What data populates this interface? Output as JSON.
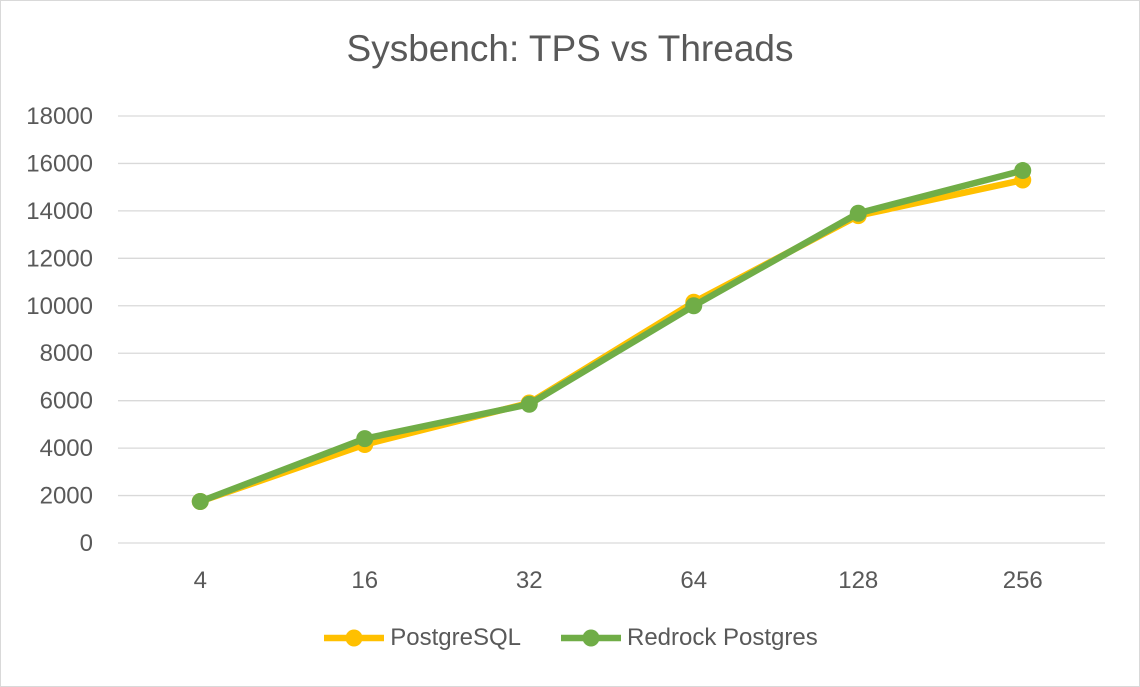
{
  "chart_data": {
    "type": "line",
    "title": "Sysbench: TPS vs Threads",
    "xlabel": "",
    "ylabel": "",
    "categories": [
      "4",
      "16",
      "32",
      "64",
      "128",
      "256"
    ],
    "ylim": [
      0,
      18000
    ],
    "yticks": [
      "0",
      "2000",
      "4000",
      "6000",
      "8000",
      "10000",
      "12000",
      "14000",
      "16000",
      "18000"
    ],
    "grid": true,
    "legend_position": "bottom",
    "series": [
      {
        "name": "PostgreSQL",
        "color": "#FFC000",
        "values": [
          1750,
          4150,
          5900,
          10150,
          13800,
          15300
        ]
      },
      {
        "name": "Redrock Postgres",
        "color": "#70AD47",
        "values": [
          1750,
          4400,
          5850,
          10000,
          13900,
          15700
        ]
      }
    ]
  }
}
